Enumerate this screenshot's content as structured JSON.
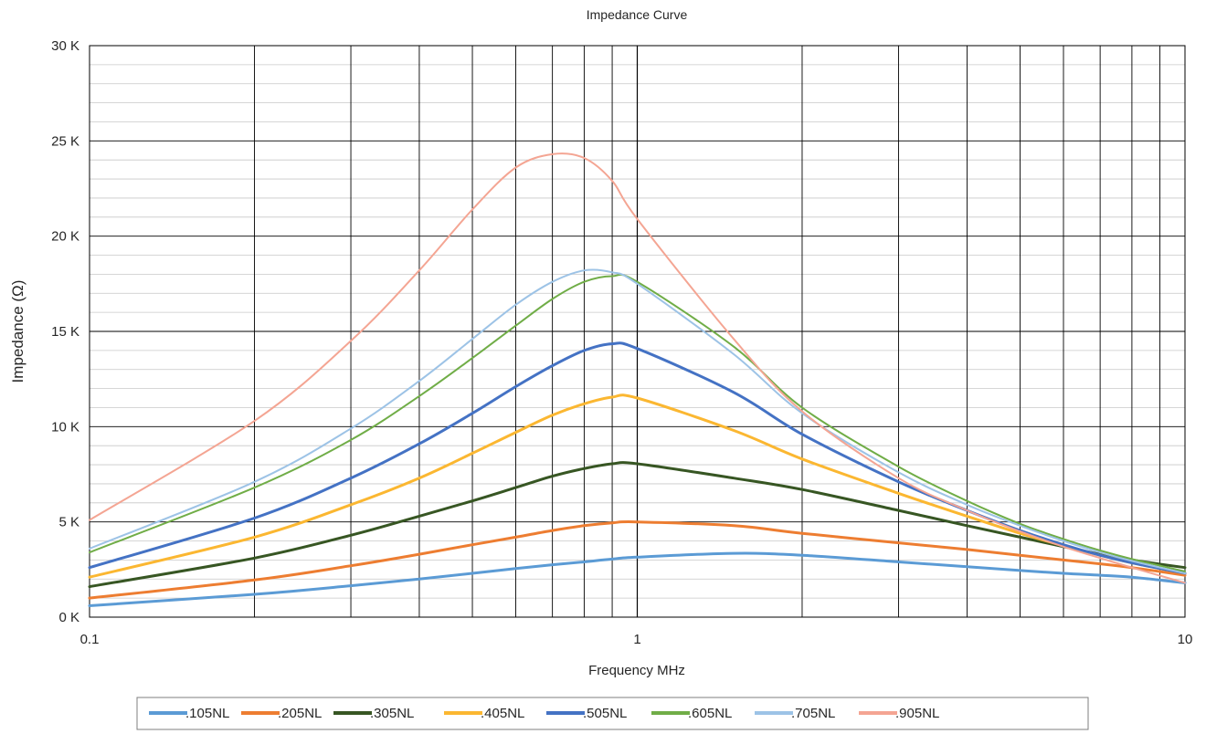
{
  "chart_data": {
    "type": "line",
    "title": "Impedance Curve",
    "xlabel": "Frequency MHz",
    "ylabel": "Impedance (Ω)",
    "x_scale": "log",
    "xlim": [
      0.1,
      10
    ],
    "ylim": [
      0,
      30000
    ],
    "x_tick_labels": [
      {
        "value": 0.1,
        "label": "0.1"
      },
      {
        "value": 1,
        "label": "1"
      },
      {
        "value": 10,
        "label": "10"
      }
    ],
    "y_tick_labels": [
      {
        "value": 0,
        "label": "0 K"
      },
      {
        "value": 5000,
        "label": "5 K"
      },
      {
        "value": 10000,
        "label": "10 K"
      },
      {
        "value": 15000,
        "label": "15 K"
      },
      {
        "value": 20000,
        "label": "20 K"
      },
      {
        "value": 25000,
        "label": "25 K"
      },
      {
        "value": 30000,
        "label": "30 K"
      }
    ],
    "grid": true,
    "legend_position": "bottom",
    "x": [
      0.1,
      0.2,
      0.3,
      0.4,
      0.5,
      0.6,
      0.7,
      0.8,
      0.9,
      1,
      1.5,
      2,
      3,
      4,
      5,
      6,
      7,
      8,
      10
    ],
    "series": [
      {
        "name": ".105NL",
        "color": "#5b9bd5",
        "width": 3,
        "values": [
          600,
          1200,
          1650,
          2000,
          2300,
          2550,
          2750,
          2900,
          3050,
          3150,
          3350,
          3250,
          2900,
          2650,
          2450,
          2300,
          2200,
          2100,
          1800
        ]
      },
      {
        "name": ".205NL",
        "color": "#ed7d31",
        "width": 3,
        "values": [
          1000,
          1950,
          2700,
          3300,
          3800,
          4200,
          4550,
          4800,
          4950,
          5000,
          4800,
          4400,
          3900,
          3550,
          3250,
          3000,
          2800,
          2600,
          2200
        ]
      },
      {
        "name": ".305NL",
        "color": "#375623",
        "width": 3,
        "values": [
          1600,
          3100,
          4300,
          5300,
          6100,
          6800,
          7400,
          7800,
          8050,
          8050,
          7300,
          6700,
          5600,
          4800,
          4200,
          3700,
          3300,
          3000,
          2600
        ]
      },
      {
        "name": ".405NL",
        "color": "#fbb731",
        "width": 3,
        "values": [
          2100,
          4200,
          5900,
          7300,
          8600,
          9700,
          10600,
          11200,
          11550,
          11500,
          9800,
          8300,
          6500,
          5300,
          4400,
          3750,
          3250,
          2850,
          2300
        ]
      },
      {
        "name": ".505NL",
        "color": "#4472c4",
        "width": 3,
        "values": [
          2600,
          5200,
          7300,
          9100,
          10700,
          12100,
          13200,
          14000,
          14350,
          14100,
          11800,
          9600,
          7100,
          5600,
          4550,
          3800,
          3250,
          2850,
          2300
        ]
      },
      {
        "name": ".605NL",
        "color": "#70ad47",
        "width": 2,
        "values": [
          3400,
          6800,
          9300,
          11600,
          13600,
          15300,
          16700,
          17600,
          17900,
          17600,
          14200,
          11000,
          7900,
          6100,
          4900,
          4100,
          3500,
          3050,
          2400
        ]
      },
      {
        "name": ".705NL",
        "color": "#9dc3e6",
        "width": 2,
        "values": [
          3600,
          7100,
          9900,
          12400,
          14600,
          16400,
          17600,
          18200,
          18100,
          17500,
          13800,
          10700,
          7600,
          5900,
          4800,
          4000,
          3400,
          2950,
          2300
        ]
      },
      {
        "name": ".905NL",
        "color": "#f4a593",
        "width": 2,
        "values": [
          5100,
          10300,
          14500,
          18200,
          21400,
          23600,
          24300,
          24100,
          22900,
          20900,
          14600,
          10800,
          7300,
          5600,
          4500,
          3700,
          3100,
          2600,
          1800
        ]
      }
    ]
  }
}
